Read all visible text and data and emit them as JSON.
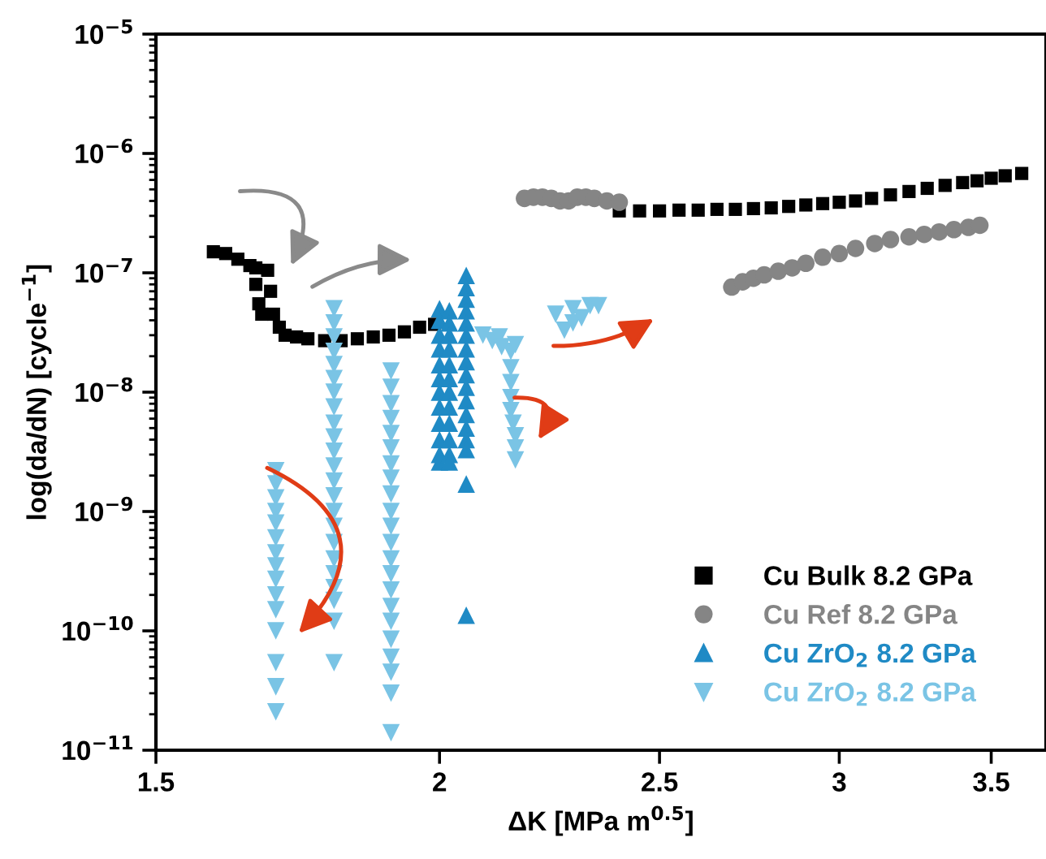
{
  "chart_data": {
    "type": "scatter",
    "xlabel": "ΔK [MPa m$^{0.5}$]",
    "ylabel": "log(da/dN) [cycle$^{−1}$]",
    "log": "xy",
    "xlim": [
      1.5,
      3.7
    ],
    "xticks": [
      1.5,
      2,
      2.5,
      3,
      3.5
    ],
    "ylim": [
      1e-11,
      1e-05
    ],
    "yticks": [
      {
        "value": 1e-11,
        "label": "10$^{−11}$"
      },
      {
        "value": 1e-10,
        "label": "10$^{−10}$"
      },
      {
        "value": 1e-09,
        "label": "10$^{−9}$"
      },
      {
        "value": 1e-08,
        "label": "10$^{−8}$"
      },
      {
        "value": 1e-07,
        "label": "10$^{−7}$"
      },
      {
        "value": 1e-06,
        "label": "10$^{−6}$"
      },
      {
        "value": 1e-05,
        "label": "10$^{−5}$"
      }
    ],
    "grid": false,
    "legend": "bottom right",
    "series": [
      {
        "name": "Cu Bulk 8.2 GPa",
        "color": "#000000",
        "marker": "square",
        "x": [
          1.59,
          1.61,
          1.63,
          1.65,
          1.66,
          1.66,
          1.665,
          1.67,
          1.68,
          1.685,
          1.69,
          1.7,
          1.71,
          1.73,
          1.75,
          1.78,
          1.81,
          1.84,
          1.87,
          1.9,
          1.93,
          1.96,
          1.99,
          2.4,
          2.45,
          2.5,
          2.55,
          2.6,
          2.65,
          2.7,
          2.75,
          2.8,
          2.85,
          2.9,
          2.95,
          3.0,
          3.05,
          3.1,
          3.16,
          3.22,
          3.28,
          3.34,
          3.4,
          3.45,
          3.5,
          3.55,
          3.61
        ],
        "values": [
          1.5e-07,
          1.45e-07,
          1.3e-07,
          1.15e-07,
          1.1e-07,
          8e-08,
          5.5e-08,
          4.5e-08,
          1.05e-07,
          7e-08,
          4.5e-08,
          3.5e-08,
          3e-08,
          2.9e-08,
          2.8e-08,
          2.7e-08,
          2.7e-08,
          2.8e-08,
          2.9e-08,
          3e-08,
          3.2e-08,
          3.5e-08,
          3.7e-08,
          3.3e-07,
          3.3e-07,
          3.3e-07,
          3.35e-07,
          3.35e-07,
          3.4e-07,
          3.4e-07,
          3.45e-07,
          3.5e-07,
          3.6e-07,
          3.7e-07,
          3.8e-07,
          3.9e-07,
          4e-07,
          4.2e-07,
          4.5e-07,
          4.8e-07,
          5.1e-07,
          5.4e-07,
          5.7e-07,
          5.9e-07,
          6.2e-07,
          6.5e-07,
          6.8e-07
        ]
      },
      {
        "name": "Cu Ref 8.2 GPa",
        "color": "#858585",
        "marker": "circle",
        "x": [
          2.18,
          2.2,
          2.22,
          2.24,
          2.26,
          2.28,
          2.3,
          2.32,
          2.34,
          2.37,
          2.4,
          2.69,
          2.72,
          2.75,
          2.78,
          2.82,
          2.86,
          2.9,
          2.95,
          3.0,
          3.05,
          3.11,
          3.16,
          3.22,
          3.27,
          3.32,
          3.37,
          3.42,
          3.46
        ],
        "values": [
          4.2e-07,
          4.3e-07,
          4.3e-07,
          4.2e-07,
          4e-07,
          4e-07,
          4.3e-07,
          4.3e-07,
          4.2e-07,
          4e-07,
          3.9e-07,
          7.6e-08,
          8.4e-08,
          9e-08,
          9.6e-08,
          1.03e-07,
          1.1e-07,
          1.2e-07,
          1.35e-07,
          1.45e-07,
          1.6e-07,
          1.76e-07,
          1.9e-07,
          2e-07,
          2.1e-07,
          2.2e-07,
          2.3e-07,
          2.4e-07,
          2.5e-07
        ]
      },
      {
        "name": "Cu ZrO$_{2}$ 8.2 GPa",
        "color": "#1f8ac5",
        "marker": "triangle",
        "x": [
          2.0,
          2.0,
          2.0,
          2.0,
          2.0,
          2.0,
          2.0,
          2.0,
          2.0,
          2.0,
          2.0,
          2.0,
          2.02,
          2.02,
          2.02,
          2.02,
          2.02,
          2.02,
          2.02,
          2.02,
          2.02,
          2.02,
          2.02,
          2.02,
          2.055,
          2.055,
          2.055,
          2.055,
          2.055,
          2.055,
          2.055,
          2.055,
          2.055,
          2.055,
          2.055,
          2.055,
          2.055,
          2.055,
          2.055,
          2.055,
          2.055
        ],
        "values": [
          5e-08,
          4e-08,
          3e-08,
          2.3e-08,
          1.7e-08,
          1.3e-08,
          1e-08,
          7.5e-09,
          5.5e-09,
          4e-09,
          3e-09,
          2.6e-09,
          4.8e-08,
          3.8e-08,
          3e-08,
          2.3e-08,
          1.7e-08,
          1.3e-08,
          1e-08,
          7.5e-09,
          5.5e-09,
          4e-09,
          3e-09,
          2.6e-09,
          9.5e-08,
          7.5e-08,
          6e-08,
          4.8e-08,
          3.8e-08,
          3e-08,
          2.3e-08,
          1.8e-08,
          1.4e-08,
          1.1e-08,
          8.5e-09,
          6.5e-09,
          5e-09,
          4e-09,
          3.3e-09,
          1.7e-09,
          1.35e-10
        ]
      },
      {
        "name": "Cu ZrO$_{2}$ 8.2 GPa",
        "color": "#7ac4e5",
        "marker": "triangle_down",
        "x": [
          1.694,
          1.694,
          1.694,
          1.694,
          1.694,
          1.694,
          1.694,
          1.694,
          1.694,
          1.694,
          1.694,
          1.694,
          1.694,
          1.694,
          1.694,
          1.797,
          1.797,
          1.797,
          1.797,
          1.797,
          1.797,
          1.797,
          1.797,
          1.797,
          1.797,
          1.797,
          1.797,
          1.797,
          1.797,
          1.797,
          1.797,
          1.797,
          1.797,
          1.797,
          1.797,
          1.797,
          1.797,
          1.797,
          1.904,
          1.904,
          1.904,
          1.904,
          1.904,
          1.904,
          1.904,
          1.904,
          1.904,
          1.904,
          1.904,
          1.904,
          1.904,
          1.904,
          1.904,
          1.904,
          1.904,
          1.904,
          1.904,
          1.904,
          1.904,
          1.904,
          2.09,
          2.11,
          2.125,
          2.13,
          2.15,
          2.16,
          2.15,
          2.15,
          2.15,
          2.15,
          2.155,
          2.16,
          2.16,
          2.16,
          2.25,
          2.27,
          2.29,
          2.29,
          2.31,
          2.33,
          2.35
        ],
        "values": [
          2.2e-09,
          1.7e-09,
          1.3e-09,
          1e-09,
          8e-10,
          6e-10,
          4.5e-10,
          3.5e-10,
          2.7e-10,
          2e-10,
          1.5e-10,
          1e-10,
          5.4e-11,
          3.4e-11,
          2.1e-11,
          5e-08,
          3.8e-08,
          2.9e-08,
          2.2e-08,
          1.7e-08,
          1.3e-08,
          1e-08,
          7.5e-09,
          5.5e-09,
          4.2e-09,
          3.2e-09,
          2.4e-09,
          1.8e-09,
          1.35e-09,
          1e-09,
          7.5e-10,
          5.5e-10,
          4e-10,
          3e-10,
          2.3e-10,
          1.8e-10,
          1.2e-10,
          5.4e-11,
          1.5e-08,
          1.1e-08,
          8e-09,
          6e-09,
          4.5e-09,
          3.4e-09,
          2.5e-09,
          1.9e-09,
          1.4e-09,
          1e-09,
          7.5e-10,
          5.5e-10,
          4e-10,
          3e-10,
          2.2e-10,
          1.6e-10,
          1.2e-10,
          8.5e-11,
          6e-11,
          4.5e-11,
          3e-11,
          1.4e-11,
          3e-08,
          2.7e-08,
          2.9e-08,
          2.4e-08,
          2.2e-08,
          2.5e-08,
          1.6e-08,
          1.2e-08,
          9e-09,
          7e-09,
          5.5e-09,
          4.3e-09,
          3.4e-09,
          2.7e-09,
          4.5e-08,
          3.3e-08,
          5e-08,
          3.8e-08,
          4.2e-08,
          5.3e-08,
          5.3e-08
        ]
      }
    ]
  }
}
